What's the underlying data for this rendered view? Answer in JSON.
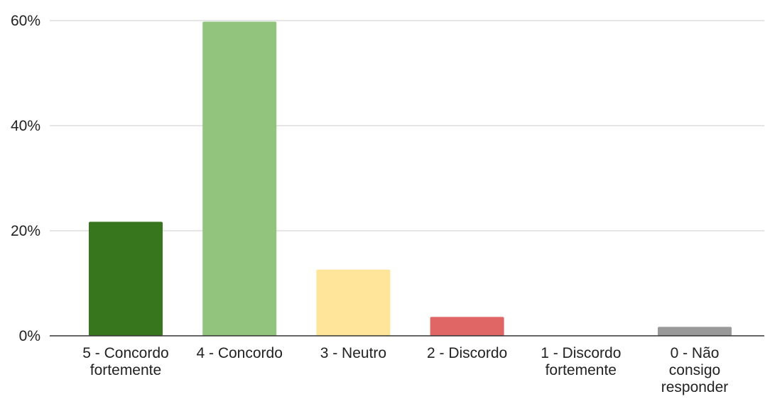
{
  "chart_data": {
    "type": "bar",
    "title": "",
    "xlabel": "",
    "ylabel": "",
    "ylim": [
      0,
      60
    ],
    "y_ticks": [
      0,
      20,
      40,
      60
    ],
    "y_tick_labels": [
      "0%",
      "20%",
      "40%",
      "60%"
    ],
    "grid": true,
    "categories": [
      [
        "5 - Concordo",
        "fortemente"
      ],
      [
        "4 - Concordo"
      ],
      [
        "3 - Neutro"
      ],
      [
        "2 - Discordo"
      ],
      [
        "1 - Discordo",
        "fortemente"
      ],
      [
        "0 - Não",
        "consigo",
        "responder"
      ]
    ],
    "values": [
      21.7,
      59.8,
      12.6,
      3.6,
      0,
      1.7
    ],
    "colors": [
      "#38761d",
      "#93c47d",
      "#ffe599",
      "#e06666",
      "#6aa84f",
      "#999999"
    ]
  }
}
